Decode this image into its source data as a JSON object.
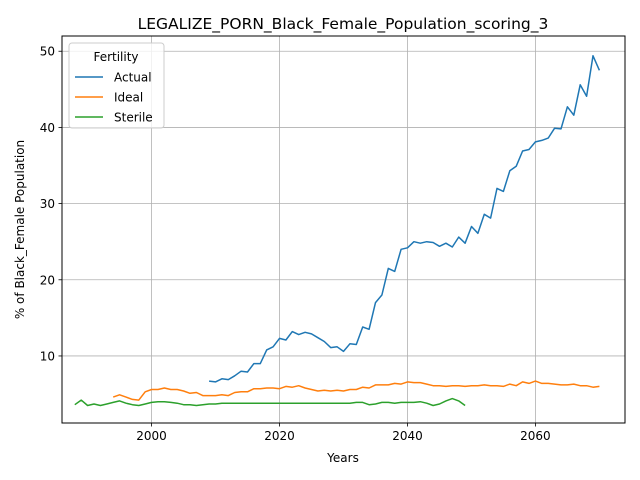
{
  "chart_data": {
    "type": "line",
    "title": "LEGALIZE_PORN_Black_Female_Population_scoring_3",
    "xlabel": "Years",
    "ylabel": "% of Black_Female Population",
    "xlim": [
      1986,
      2074
    ],
    "ylim": [
      1.2,
      52
    ],
    "x_ticks": [
      2000,
      2020,
      2040,
      2060
    ],
    "y_ticks": [
      10,
      20,
      30,
      40,
      50
    ],
    "grid": true,
    "legend": {
      "title": "Fertility",
      "placement": "top-left"
    },
    "series": [
      {
        "name": "Actual",
        "color": "#1f77b4",
        "x": [
          2009,
          2010,
          2011,
          2012,
          2013,
          2014,
          2015,
          2016,
          2017,
          2018,
          2019,
          2020,
          2021,
          2022,
          2023,
          2024,
          2025,
          2026,
          2027,
          2028,
          2029,
          2030,
          2031,
          2032,
          2033,
          2034,
          2035,
          2036,
          2037,
          2038,
          2039,
          2040,
          2041,
          2042,
          2043,
          2044,
          2045,
          2046,
          2047,
          2048,
          2049,
          2050,
          2051,
          2052,
          2053,
          2054,
          2055,
          2056,
          2057,
          2058,
          2059,
          2060,
          2061,
          2062,
          2063,
          2064,
          2065,
          2066,
          2067,
          2068,
          2069,
          2070
        ],
        "values": [
          6.7,
          6.6,
          7.0,
          6.9,
          7.4,
          8.0,
          7.9,
          9.0,
          9.0,
          10.8,
          11.2,
          12.3,
          12.1,
          13.2,
          12.8,
          13.1,
          12.9,
          12.4,
          11.9,
          11.1,
          11.2,
          10.6,
          11.6,
          11.5,
          13.8,
          13.5,
          17.0,
          18.0,
          21.5,
          21.1,
          24.0,
          24.2,
          25.0,
          24.8,
          25.0,
          24.9,
          24.4,
          24.8,
          24.3,
          25.6,
          24.8,
          27.0,
          26.1,
          28.6,
          28.1,
          32.0,
          31.6,
          34.3,
          34.9,
          36.9,
          37.1,
          38.1,
          38.3,
          38.6,
          39.9,
          39.8,
          42.7,
          41.6,
          45.6,
          44.1,
          49.4,
          47.5
        ]
      },
      {
        "name": "Ideal",
        "color": "#ff7f0e",
        "x": [
          1994,
          1995,
          1996,
          1997,
          1998,
          1999,
          2000,
          2001,
          2002,
          2003,
          2004,
          2005,
          2006,
          2007,
          2008,
          2009,
          2010,
          2011,
          2012,
          2013,
          2014,
          2015,
          2016,
          2017,
          2018,
          2019,
          2020,
          2021,
          2022,
          2023,
          2024,
          2025,
          2026,
          2027,
          2028,
          2029,
          2030,
          2031,
          2032,
          2033,
          2034,
          2035,
          2036,
          2037,
          2038,
          2039,
          2040,
          2041,
          2042,
          2043,
          2044,
          2045,
          2046,
          2047,
          2048,
          2049,
          2050,
          2051,
          2052,
          2053,
          2054,
          2055,
          2056,
          2057,
          2058,
          2059,
          2060,
          2061,
          2062,
          2063,
          2064,
          2065,
          2066,
          2067,
          2068,
          2069,
          2070
        ],
        "values": [
          4.6,
          4.9,
          4.6,
          4.3,
          4.2,
          5.3,
          5.6,
          5.6,
          5.8,
          5.6,
          5.6,
          5.4,
          5.1,
          5.2,
          4.8,
          4.8,
          4.8,
          4.9,
          4.8,
          5.2,
          5.3,
          5.3,
          5.7,
          5.7,
          5.8,
          5.8,
          5.7,
          6.0,
          5.9,
          6.1,
          5.8,
          5.6,
          5.4,
          5.5,
          5.4,
          5.5,
          5.4,
          5.6,
          5.6,
          5.9,
          5.8,
          6.2,
          6.2,
          6.2,
          6.4,
          6.3,
          6.6,
          6.5,
          6.5,
          6.3,
          6.1,
          6.1,
          6.0,
          6.1,
          6.1,
          6.0,
          6.1,
          6.1,
          6.2,
          6.1,
          6.1,
          6.0,
          6.3,
          6.1,
          6.6,
          6.4,
          6.7,
          6.4,
          6.4,
          6.3,
          6.2,
          6.2,
          6.3,
          6.1,
          6.1,
          5.9,
          6.0
        ]
      },
      {
        "name": "Sterile",
        "color": "#2ca02c",
        "x": [
          1988,
          1989,
          1990,
          1991,
          1992,
          1993,
          1994,
          1995,
          1996,
          1997,
          1998,
          1999,
          2000,
          2001,
          2002,
          2003,
          2004,
          2005,
          2006,
          2007,
          2008,
          2009,
          2010,
          2011,
          2012,
          2013,
          2014,
          2015,
          2016,
          2017,
          2018,
          2019,
          2020,
          2021,
          2022,
          2023,
          2024,
          2025,
          2026,
          2027,
          2028,
          2029,
          2030,
          2031,
          2032,
          2033,
          2034,
          2035,
          2036,
          2037,
          2038,
          2039,
          2040,
          2041,
          2042,
          2043,
          2044,
          2045,
          2046,
          2047,
          2048,
          2049
        ],
        "values": [
          3.6,
          4.2,
          3.5,
          3.7,
          3.5,
          3.7,
          3.9,
          4.1,
          3.8,
          3.6,
          3.5,
          3.7,
          3.9,
          4.0,
          4.0,
          3.9,
          3.8,
          3.6,
          3.6,
          3.5,
          3.6,
          3.7,
          3.7,
          3.8,
          3.8,
          3.8,
          3.8,
          3.8,
          3.8,
          3.8,
          3.8,
          3.8,
          3.8,
          3.8,
          3.8,
          3.8,
          3.8,
          3.8,
          3.8,
          3.8,
          3.8,
          3.8,
          3.8,
          3.8,
          3.9,
          3.9,
          3.6,
          3.7,
          3.9,
          3.9,
          3.8,
          3.9,
          3.9,
          3.9,
          4.0,
          3.8,
          3.5,
          3.7,
          4.1,
          4.4,
          4.1,
          3.5
        ]
      }
    ]
  }
}
